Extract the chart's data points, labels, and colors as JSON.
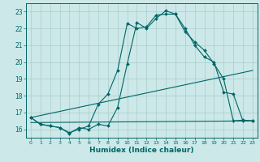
{
  "xlabel": "Humidex (Indice chaleur)",
  "background_color": "#cce8e8",
  "grid_color": "#aacccc",
  "line_color": "#006666",
  "xlim": [
    -0.5,
    23.5
  ],
  "ylim": [
    15.5,
    23.5
  ],
  "yticks": [
    16,
    17,
    18,
    19,
    20,
    21,
    22,
    23
  ],
  "xticks": [
    0,
    1,
    2,
    3,
    4,
    5,
    6,
    7,
    8,
    9,
    10,
    11,
    12,
    13,
    14,
    15,
    16,
    17,
    18,
    19,
    20,
    21,
    22,
    23
  ],
  "line1_x": [
    0,
    1,
    2,
    3,
    4,
    5,
    6,
    7,
    8,
    9,
    10,
    11,
    12,
    13,
    14,
    15,
    16,
    17,
    18,
    19,
    20,
    21,
    22,
    23
  ],
  "line1_y": [
    16.7,
    16.3,
    16.2,
    16.1,
    15.8,
    16.0,
    16.2,
    17.5,
    18.1,
    19.5,
    22.3,
    22.0,
    22.1,
    22.8,
    22.85,
    22.85,
    22.0,
    21.0,
    20.3,
    20.0,
    18.2,
    18.1,
    16.5,
    16.5
  ],
  "line2_x": [
    0,
    1,
    2,
    3,
    4,
    5,
    6,
    7,
    8,
    9,
    10,
    11,
    12,
    13,
    14,
    15,
    16,
    17,
    18,
    19,
    20,
    21,
    22,
    23
  ],
  "line2_y": [
    16.7,
    16.3,
    16.2,
    16.1,
    15.75,
    16.1,
    16.0,
    16.3,
    16.2,
    17.3,
    19.9,
    22.35,
    22.0,
    22.6,
    23.05,
    22.85,
    21.8,
    21.2,
    20.7,
    19.9,
    19.0,
    16.5,
    16.55,
    16.5
  ],
  "flat_line_x": [
    0,
    23
  ],
  "flat_line_y": [
    16.4,
    16.5
  ],
  "diag_line_x": [
    0,
    23
  ],
  "diag_line_y": [
    16.7,
    19.5
  ]
}
